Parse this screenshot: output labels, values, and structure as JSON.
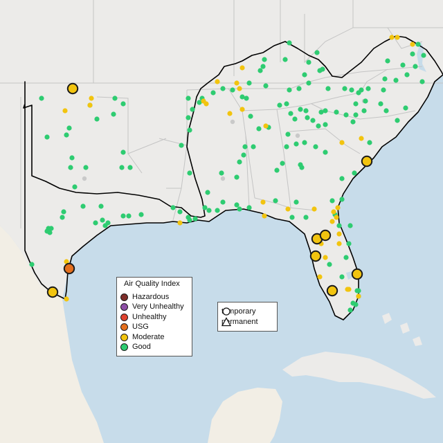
{
  "map": {
    "aqi_legend": {
      "title": "Air Quality Index",
      "items": [
        {
          "label": "Hazardous",
          "color": "#7e2e2a"
        },
        {
          "label": "Very Unhealthy",
          "color": "#8d4fa6"
        },
        {
          "label": "Unhealthy",
          "color": "#e0432f"
        },
        {
          "label": "USG",
          "color": "#e46f1d"
        },
        {
          "label": "Moderate",
          "color": "#f2c40f"
        },
        {
          "label": "Good",
          "color": "#2ecc71"
        }
      ]
    },
    "monitor_type_legend": {
      "items": [
        {
          "label": "temporary",
          "symbol": "circle"
        },
        {
          "label": "permanent",
          "symbol": "triangle"
        }
      ]
    },
    "colors": {
      "water": "#c7dcea",
      "land": "#ecebe9",
      "mexico_land": "#f2eee5",
      "boundary": "#000000",
      "state_lines": "#c4c4c4"
    }
  }
}
